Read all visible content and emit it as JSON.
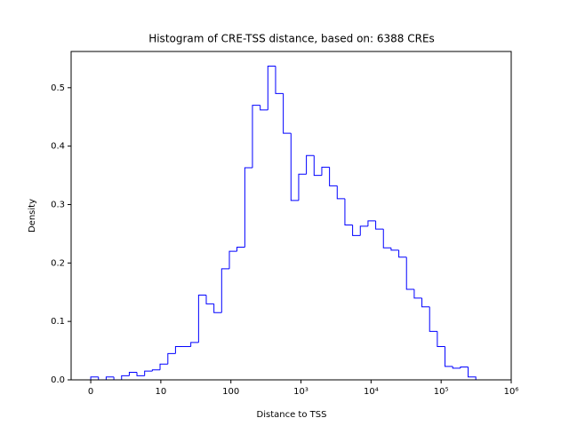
{
  "chart_data": {
    "type": "histogram",
    "title": "Histogram of CRE-TSS distance, based on: 6388 CREs",
    "xlabel": "Distance to TSS",
    "ylabel": "Density",
    "color": "#0000ff",
    "xscale": "symlog",
    "linthresh": 10,
    "bins": [
      0,
      1.1,
      2.2,
      3.3,
      4.4,
      5.5,
      6.59,
      7.69,
      8.79,
      9.89,
      12.6,
      16.2,
      20.8,
      26.8,
      34.6,
      44.5,
      57.3,
      73.8,
      95.1,
      122,
      158,
      203,
      262,
      337,
      434,
      559,
      720,
      927,
      1194,
      1538,
      1982,
      2553,
      3288,
      4234,
      5454,
      7025,
      9047,
      11650,
      15010,
      19330,
      24900,
      32060,
      41300,
      53190,
      68500,
      88220,
      113600,
      146300,
      188500,
      242800,
      312600
    ],
    "values": [
      0.005,
      0,
      0.005,
      0,
      0.007,
      0.013,
      0.007,
      0.015,
      0.017,
      0.027,
      0.045,
      0.057,
      0.057,
      0.064,
      0.145,
      0.13,
      0.115,
      0.19,
      0.22,
      0.227,
      0.363,
      0.47,
      0.462,
      0.537,
      0.49,
      0.422,
      0.307,
      0.352,
      0.384,
      0.35,
      0.364,
      0.332,
      0.31,
      0.265,
      0.247,
      0.263,
      0.272,
      0.258,
      0.226,
      0.222,
      0.21,
      0.155,
      0.14,
      0.125,
      0.083,
      0.057,
      0.023,
      0.02,
      0.022,
      0.005
    ],
    "xlim": [
      -2.8,
      1000000
    ],
    "xticks": [
      0,
      10,
      100,
      {
        "value": 1000,
        "label": "10³"
      },
      {
        "value": 10000,
        "label": "10⁴"
      },
      {
        "value": 100000,
        "label": "10⁵"
      },
      {
        "value": 1000000,
        "label": "10⁶"
      }
    ],
    "ylim": [
      0,
      0.562
    ],
    "yticks": [
      0.0,
      0.1,
      0.2,
      0.3,
      0.4,
      0.5
    ]
  }
}
